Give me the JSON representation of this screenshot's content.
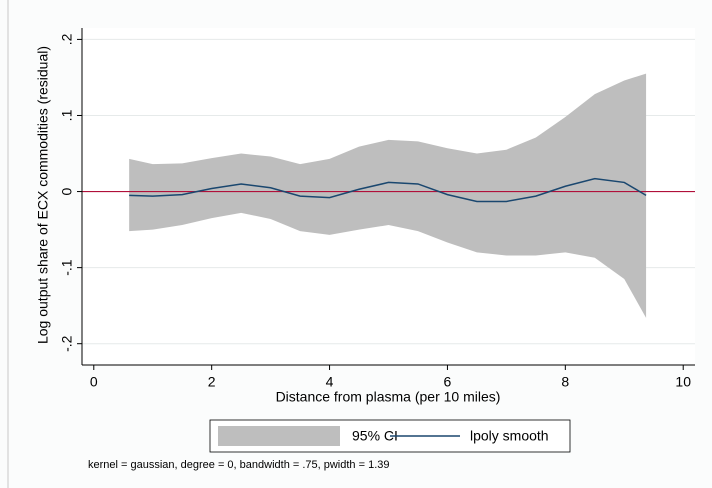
{
  "chart_data": {
    "type": "lpoly",
    "ylabel": "Log output share of ECX commodities (residual)",
    "xlabel": "Distance from plasma (per 10 miles)",
    "note": "kernel = gaussian, degree = 0, bandwidth = .75, pwidth = 1.39",
    "x": [
      0.6,
      1,
      1.5,
      2,
      2.5,
      3,
      3.5,
      4,
      4.5,
      5,
      5.5,
      6,
      6.5,
      7,
      7.5,
      8,
      8.5,
      9,
      9.37
    ],
    "series": [
      {
        "name": "95% CI",
        "kind": "band",
        "color": "#bebebe",
        "upper": [
          0.043,
          0.036,
          0.037,
          0.044,
          0.05,
          0.046,
          0.036,
          0.043,
          0.059,
          0.068,
          0.066,
          0.057,
          0.05,
          0.055,
          0.071,
          0.098,
          0.128,
          0.146,
          0.155
        ],
        "lower": [
          -0.052,
          -0.05,
          -0.044,
          -0.035,
          -0.028,
          -0.036,
          -0.052,
          -0.057,
          -0.05,
          -0.044,
          -0.052,
          -0.067,
          -0.08,
          -0.084,
          -0.084,
          -0.08,
          -0.087,
          -0.115,
          -0.166
        ]
      },
      {
        "name": "lpoly smooth",
        "kind": "line",
        "color": "#1a476f",
        "values": [
          -0.005,
          -0.006,
          -0.004,
          0.004,
          0.01,
          0.005,
          -0.006,
          -0.008,
          0.003,
          0.012,
          0.01,
          -0.004,
          -0.013,
          -0.013,
          -0.006,
          0.007,
          0.017,
          0.012,
          -0.005
        ]
      }
    ],
    "hline": {
      "value": 0,
      "color": "#b0103a"
    },
    "xlim": [
      -0.2,
      10.2
    ],
    "xticks": [
      0,
      2,
      4,
      6,
      8,
      10
    ],
    "ylim": [
      -0.228,
      0.215
    ],
    "yticks": [
      {
        "value": -0.2,
        "label": "-.2"
      },
      {
        "value": -0.1,
        "label": "-.1"
      },
      0,
      {
        "value": 0.1,
        "label": ".1"
      },
      {
        "value": 0.2,
        "label": ".2"
      }
    ],
    "grid": true
  }
}
